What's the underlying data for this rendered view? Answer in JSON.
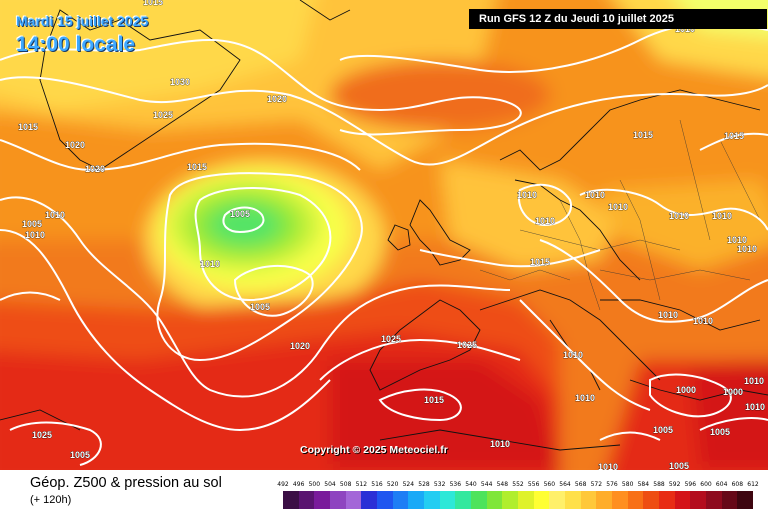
{
  "header": {
    "date": "Mardi 15 juillet 2025",
    "time": "14:00 locale",
    "run": "Run GFS 12 Z du Jeudi 10 juillet 2025"
  },
  "copyright": "Copyright © 2025 Meteociel.fr",
  "footer": {
    "title": "Géop. Z500 & pression au sol",
    "subtitle": "(+ 120h)"
  },
  "legend": {
    "ticks": [
      "492",
      "496",
      "500",
      "504",
      "508",
      "512",
      "516",
      "520",
      "524",
      "528",
      "532",
      "536",
      "540",
      "544",
      "548",
      "552",
      "556",
      "560",
      "564",
      "568",
      "572",
      "576",
      "580",
      "584",
      "588",
      "592",
      "596",
      "600",
      "604",
      "608",
      "612"
    ],
    "colors": [
      "#3b0f45",
      "#5a1470",
      "#7a1b9b",
      "#8e44c0",
      "#a366d8",
      "#2b2fd6",
      "#1f56f0",
      "#1e7ef5",
      "#19a9f7",
      "#22cdf2",
      "#2ee8d8",
      "#34e89e",
      "#4ee35c",
      "#7fe63a",
      "#b0ee2e",
      "#dff22b",
      "#ffff33",
      "#fff06a",
      "#ffe04a",
      "#ffc83a",
      "#ffad2a",
      "#ff8f20",
      "#f87016",
      "#ee4e12",
      "#e82c14",
      "#d41318",
      "#b40c1e",
      "#8e0a1e",
      "#660818",
      "#3e0510"
    ]
  },
  "isobar_labels": [
    "1030",
    "1025",
    "1020",
    "1020",
    "1020",
    "1015",
    "1005",
    "1010",
    "1005",
    "1010",
    "1015",
    "1005",
    "1010",
    "1020",
    "1025",
    "1025",
    "1015",
    "1025",
    "1010",
    "1005",
    "1010",
    "1010",
    "1010",
    "1010",
    "1015",
    "1010",
    "1010",
    "1015",
    "1010",
    "1010",
    "1010",
    "1010",
    "1010",
    "1010",
    "1010",
    "1000",
    "1000",
    "1005",
    "1005",
    "1005",
    "1010",
    "1015",
    "1010",
    "1010",
    "1015"
  ]
}
